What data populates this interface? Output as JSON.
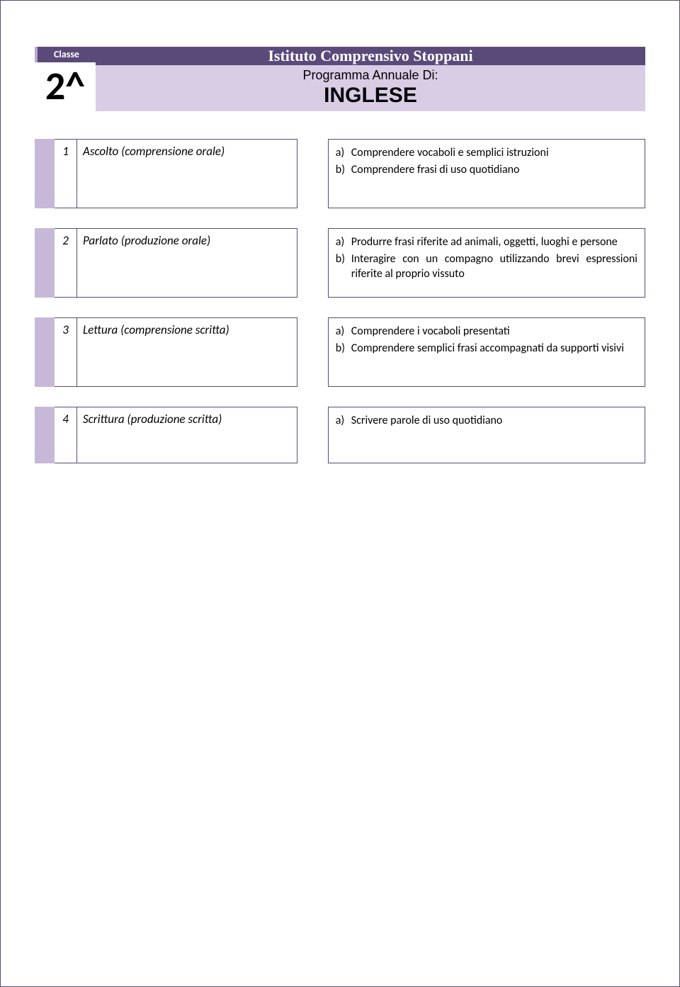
{
  "colors": {
    "header_bar_bg": "#5a4a7a",
    "header_bar_text": "#ffffff",
    "subtitle_bg": "#d9cde6",
    "accent_strip": "#c8b8d8",
    "border": "#5a4a7a",
    "page_bg": "#ffffff",
    "text": "#000000"
  },
  "header": {
    "classe_label": "Classe",
    "classe_value": "2^",
    "institute": "Istituto Comprensivo Stoppani",
    "program_line": "Programma Annuale Di:",
    "subject": "INGLESE"
  },
  "sections": [
    {
      "num": "1",
      "label": "Ascolto (comprensione orale)",
      "items": [
        {
          "key": "a)",
          "text": "Comprendere vocaboli e semplici istruzioni"
        },
        {
          "key": "b)",
          "text": "Comprendere frasi di uso quotidiano"
        }
      ],
      "height_class": "tall"
    },
    {
      "num": "2",
      "label": "Parlato (produzione orale)",
      "items": [
        {
          "key": "a)",
          "text": "Produrre frasi riferite ad animali, oggetti, luoghi e persone"
        },
        {
          "key": "b)",
          "text": "Interagire con un compagno utilizzando brevi espressioni riferite al proprio vissuto"
        }
      ],
      "height_class": "tall"
    },
    {
      "num": "3",
      "label": "Lettura (comprensione scritta)",
      "items": [
        {
          "key": "a)",
          "text": "Comprendere i vocaboli presentati"
        },
        {
          "key": "b)",
          "text": "Comprendere semplici frasi accompagnati da supporti visivi"
        }
      ],
      "height_class": "tall"
    },
    {
      "num": "4",
      "label": "Scrittura (produzione scritta)",
      "items": [
        {
          "key": "a)",
          "text": "Scrivere parole di uso quotidiano"
        }
      ],
      "height_class": "med"
    }
  ]
}
